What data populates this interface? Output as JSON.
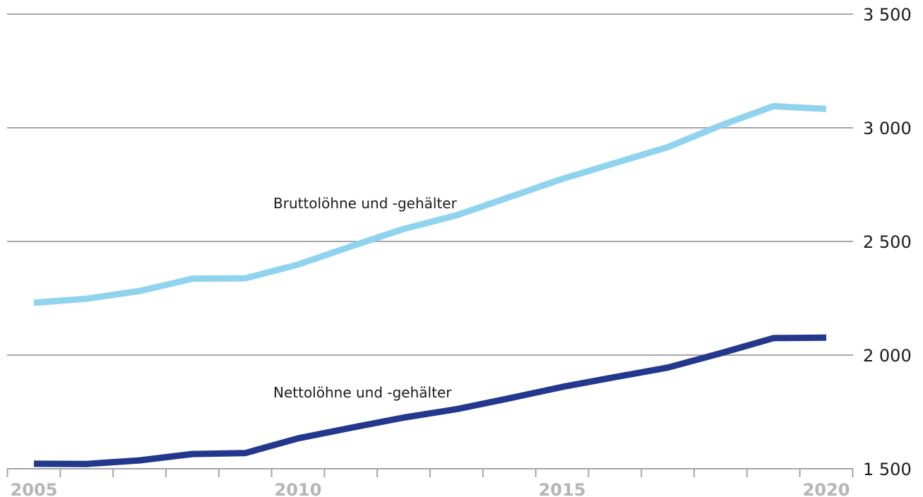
{
  "chart_data": {
    "type": "line",
    "x": [
      2005,
      2006,
      2007,
      2008,
      2009,
      2010,
      2011,
      2012,
      2013,
      2014,
      2015,
      2016,
      2017,
      2018,
      2019,
      2020
    ],
    "series": [
      {
        "name": "Bruttolöhne und -gehälter",
        "color": "#8fd3ef",
        "values": [
          2230,
          2248,
          2282,
          2336,
          2338,
          2398,
          2478,
          2555,
          2615,
          2695,
          2775,
          2845,
          2915,
          3010,
          3095,
          3083
        ]
      },
      {
        "name": "Nettolöhne und -gehälter",
        "color": "#23378c",
        "values": [
          1522,
          1521,
          1537,
          1565,
          1569,
          1634,
          1680,
          1725,
          1762,
          1810,
          1860,
          1903,
          1945,
          2008,
          2075,
          2077
        ]
      }
    ],
    "xlim": [
      2005,
      2020
    ],
    "ylim": [
      1500,
      3500
    ],
    "xticks": [
      "2005",
      "2010",
      "2015",
      "2020"
    ],
    "yticks": [
      "1 500",
      "2 000",
      "2 500",
      "3 000",
      "3 500"
    ],
    "grid": true,
    "y_axis_position": "right",
    "title": "",
    "xlabel": "",
    "ylabel": ""
  }
}
